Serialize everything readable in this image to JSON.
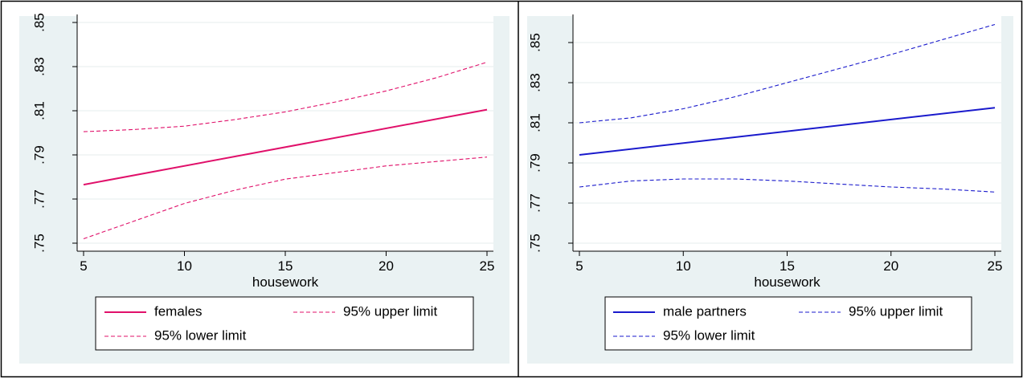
{
  "chart_data": [
    {
      "type": "line",
      "title": "",
      "xlabel": "housework",
      "ylabel": "",
      "xlim": [
        5,
        25
      ],
      "ylim": [
        0.75,
        0.85
      ],
      "xticks": [
        5,
        10,
        15,
        20,
        25
      ],
      "xtick_labels": [
        "5",
        "10",
        "15",
        "20",
        "25"
      ],
      "yticks": [
        0.75,
        0.77,
        0.79,
        0.81,
        0.83,
        0.85
      ],
      "ytick_labels": [
        ".75",
        ".77",
        ".79",
        ".81",
        ".83",
        ".85"
      ],
      "grid": true,
      "legend_position": "bottom",
      "series": [
        {
          "name": "females",
          "style": "solid",
          "color": "#e0106a",
          "x": [
            5,
            25
          ],
          "y": [
            0.7765,
            0.8105
          ]
        },
        {
          "name": "95% upper limit",
          "style": "dashed",
          "color": "#e0106a",
          "x": [
            5,
            7.5,
            10,
            12.5,
            15,
            17.5,
            20,
            22.5,
            25
          ],
          "y": [
            0.8005,
            0.8015,
            0.803,
            0.806,
            0.8095,
            0.814,
            0.819,
            0.825,
            0.832
          ]
        },
        {
          "name": "95% lower limit",
          "style": "dashed",
          "color": "#e0106a",
          "x": [
            5,
            7.5,
            10,
            12.5,
            15,
            17.5,
            20,
            22.5,
            25
          ],
          "y": [
            0.752,
            0.76,
            0.768,
            0.774,
            0.779,
            0.782,
            0.785,
            0.787,
            0.789
          ]
        }
      ]
    },
    {
      "type": "line",
      "title": "",
      "xlabel": "housework",
      "ylabel": "",
      "xlim": [
        5,
        25
      ],
      "ylim": [
        0.75,
        0.86
      ],
      "xticks": [
        5,
        10,
        15,
        20,
        25
      ],
      "xtick_labels": [
        "5",
        "10",
        "15",
        "20",
        "25"
      ],
      "yticks": [
        0.75,
        0.77,
        0.79,
        0.81,
        0.83,
        0.85
      ],
      "ytick_labels": [
        ".75",
        ".77",
        ".79",
        ".81",
        ".83",
        ".85"
      ],
      "grid": true,
      "legend_position": "bottom",
      "series": [
        {
          "name": "male partners",
          "style": "solid",
          "color": "#1a1acc",
          "x": [
            5,
            25
          ],
          "y": [
            0.794,
            0.8175
          ]
        },
        {
          "name": "95% upper limit",
          "style": "dashed",
          "color": "#1a1acc",
          "x": [
            5,
            7.5,
            10,
            12.5,
            15,
            17.5,
            20,
            22.5,
            25
          ],
          "y": [
            0.81,
            0.8125,
            0.817,
            0.823,
            0.83,
            0.837,
            0.844,
            0.8515,
            0.859
          ]
        },
        {
          "name": "95% lower limit",
          "style": "dashed",
          "color": "#1a1acc",
          "x": [
            5,
            7.5,
            10,
            12.5,
            15,
            17.5,
            20,
            22.5,
            25
          ],
          "y": [
            0.778,
            0.781,
            0.782,
            0.782,
            0.781,
            0.7795,
            0.778,
            0.777,
            0.7755
          ]
        }
      ]
    }
  ]
}
